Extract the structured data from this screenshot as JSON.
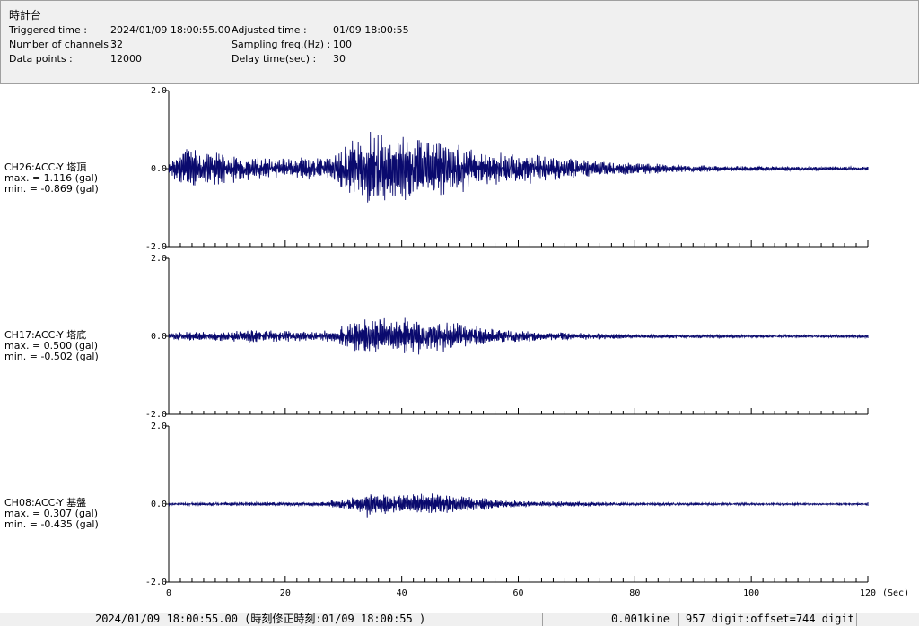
{
  "header": {
    "title": "時計台",
    "triggered_label": "Triggered time :",
    "triggered_value": "2024/01/09 18:00:55.00",
    "channels_label": "Number of channels :",
    "channels_value": "32",
    "points_label": "Data points :",
    "points_value": "12000",
    "adjusted_label": "Adjusted time :",
    "adjusted_value": "01/09 18:00:55",
    "freq_label": "Sampling freq.(Hz) :",
    "freq_value": "100",
    "delay_label": "Delay time(sec) :",
    "delay_value": "30"
  },
  "colors": {
    "trace": "#0a0a6e",
    "axis": "#000000",
    "panel": "#f0f0f0"
  },
  "chart_data": {
    "type": "line",
    "x_unit": "(Sec)",
    "xlim": [
      0,
      120
    ],
    "x_ticks": [
      "0",
      "20",
      "40",
      "60",
      "80",
      "100",
      "120"
    ],
    "y_ticks": [
      "2.0",
      "0.0",
      "-2.0"
    ],
    "ylim": [
      -2.0,
      2.0
    ],
    "channels": [
      {
        "name": "CH26:ACC-Y 塔頂",
        "max_label": "max. = 1.116 (gal)",
        "min_label": "min. = -0.869 (gal)",
        "max": 1.116,
        "min": -0.869,
        "envelope": [
          [
            0,
            0.12
          ],
          [
            1.5,
            0.4
          ],
          [
            2.5,
            0.75
          ],
          [
            4,
            0.5
          ],
          [
            6,
            0.45
          ],
          [
            10,
            0.4
          ],
          [
            15,
            0.3
          ],
          [
            20,
            0.28
          ],
          [
            25,
            0.3
          ],
          [
            29,
            0.45
          ],
          [
            31,
            0.85
          ],
          [
            33,
            0.75
          ],
          [
            34,
            1.116
          ],
          [
            36,
            0.9
          ],
          [
            40,
            0.85
          ],
          [
            44,
            0.9
          ],
          [
            48,
            0.75
          ],
          [
            52,
            0.55
          ],
          [
            56,
            0.45
          ],
          [
            60,
            0.45
          ],
          [
            64,
            0.35
          ],
          [
            70,
            0.25
          ],
          [
            80,
            0.15
          ],
          [
            90,
            0.09
          ],
          [
            100,
            0.07
          ],
          [
            110,
            0.06
          ],
          [
            120,
            0.05
          ]
        ]
      },
      {
        "name": "CH17:ACC-Y 塔底",
        "max_label": "max. = 0.500 (gal)",
        "min_label": "min. = -0.502 (gal)",
        "max": 0.5,
        "min": -0.502,
        "envelope": [
          [
            0,
            0.06
          ],
          [
            2,
            0.12
          ],
          [
            10,
            0.12
          ],
          [
            16,
            0.2
          ],
          [
            18,
            0.16
          ],
          [
            25,
            0.12
          ],
          [
            29,
            0.2
          ],
          [
            31,
            0.4
          ],
          [
            34,
            0.45
          ],
          [
            38,
            0.48
          ],
          [
            42,
            0.5
          ],
          [
            46,
            0.45
          ],
          [
            50,
            0.35
          ],
          [
            55,
            0.2
          ],
          [
            60,
            0.15
          ],
          [
            65,
            0.12
          ],
          [
            70,
            0.09
          ],
          [
            80,
            0.06
          ],
          [
            100,
            0.04
          ],
          [
            120,
            0.035
          ]
        ]
      },
      {
        "name": "CH08:ACC-Y 基盤",
        "max_label": "max. = 0.307 (gal)",
        "min_label": "min. = -0.435 (gal)",
        "max": 0.307,
        "min": -0.435,
        "envelope": [
          [
            0,
            0.03
          ],
          [
            10,
            0.05
          ],
          [
            20,
            0.05
          ],
          [
            27,
            0.07
          ],
          [
            30,
            0.15
          ],
          [
            33,
            0.25
          ],
          [
            34,
            0.43
          ],
          [
            36,
            0.3
          ],
          [
            40,
            0.25
          ],
          [
            44,
            0.3
          ],
          [
            48,
            0.25
          ],
          [
            52,
            0.18
          ],
          [
            58,
            0.1
          ],
          [
            65,
            0.07
          ],
          [
            80,
            0.04
          ],
          [
            100,
            0.03
          ],
          [
            120,
            0.025
          ]
        ]
      }
    ]
  },
  "status": {
    "datetime": "2024/01/09 18:00:55.00  (時刻修正時刻:01/09 18:00:55  )",
    "unit": "0.001kine",
    "digit": "957 digit:offset=744 digit"
  }
}
